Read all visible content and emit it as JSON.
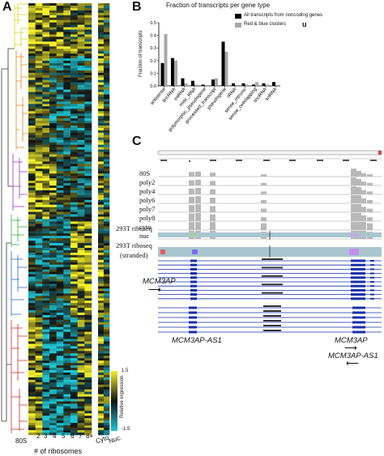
{
  "panels": {
    "a": {
      "letter": "A",
      "xticks": [
        "80S",
        "2",
        "3",
        "4",
        "5",
        "6",
        "7",
        "8+",
        "Cyto",
        "Nuc."
      ],
      "xlabel": "# of ribosomes",
      "colorbar": {
        "label": "Relative expression",
        "max": "1.5",
        "min": "-1.5",
        "high_color": "#f6f12a",
        "low_color": "#1fc6d4"
      },
      "cluster_colors": [
        "#d4d21a",
        "#e8831b",
        "#9b30c0",
        "#2faa2f",
        "#2b61c9",
        "#d42a2a"
      ]
    },
    "b": {
      "letter": "B",
      "title": "Fraction of transcripts per gene type",
      "ylabel": "Fraction of transcripts",
      "legend": [
        {
          "label": "All transcripts from noncoding genes",
          "color": "#000000"
        },
        {
          "label": "Red & blue clusters",
          "color": "#a8a8a8"
        }
      ],
      "legend_suffix": "u"
    },
    "c": {
      "letter": "C",
      "tracks": [
        "80S",
        "poly2",
        "poly4",
        "poly6",
        "poly7",
        "poly8",
        "cyto",
        "nuc"
      ],
      "riboseq_label": "293T riboseq",
      "riboseq_stranded_label_1": "293T riboseq",
      "riboseq_stranded_label_2": "(stranded)",
      "genes": {
        "mcm3ap_left": "MCM3AP",
        "mcm3ap_as1_left": "MCM3AP-AS1",
        "mcm3ap_right": "MCM3AP",
        "mcm3ap_as1_right": "MCM3AP-AS1"
      }
    }
  },
  "chart_data": [
    {
      "type": "bar",
      "title": "Fraction of transcripts per gene type",
      "ylabel": "Fraction of transcripts",
      "ylim": [
        0,
        0.5
      ],
      "yticks": [
        "0.0",
        "0.1",
        "0.2",
        "0.3",
        "0.4",
        "0.5"
      ],
      "categories": [
        "antisense",
        "lincRNA",
        "miRNA",
        "misc_RNA",
        "polymorphic_pseudogene",
        "processed_transcript",
        "pseudogene",
        "rRNA",
        "sense_intronic",
        "sense_overlapping",
        "snoRNA",
        "snRNA"
      ],
      "series": [
        {
          "name": "All transcripts from noncoding genes",
          "color": "#000000",
          "values": [
            0.18,
            0.22,
            0.06,
            0.04,
            0.01,
            0.05,
            0.35,
            0.02,
            0.02,
            0.01,
            0.02,
            0.03
          ]
        },
        {
          "name": "Red & blue clusters",
          "color": "#a8a8a8",
          "values": [
            0.41,
            0.2,
            0.02,
            0.01,
            0.0,
            0.06,
            0.27,
            0.0,
            0.01,
            0.03,
            0.01,
            0.0
          ]
        }
      ],
      "grid": false,
      "legend_position": "top-right"
    }
  ]
}
